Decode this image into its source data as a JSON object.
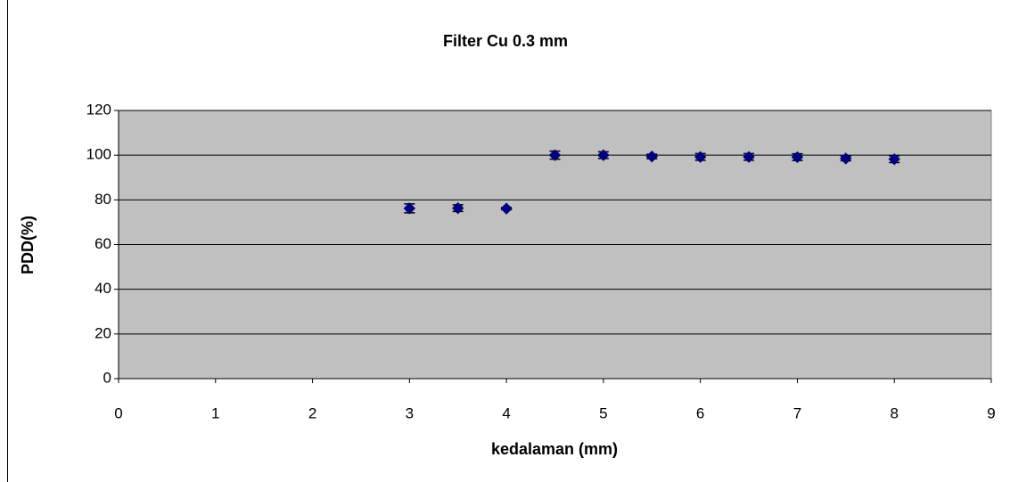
{
  "chart_data": {
    "type": "scatter",
    "title": "Filter Cu 0.3 mm",
    "x_label": "kedalaman (mm)",
    "y_label": "PDD(%)",
    "x": [
      3,
      3.5,
      4,
      4.5,
      5,
      5.5,
      6,
      6.5,
      7,
      7.5,
      8
    ],
    "values": [
      76.2,
      76.3,
      76.1,
      100,
      100,
      99.4,
      99.2,
      99.2,
      99.1,
      98.5,
      98.2
    ],
    "errors": [
      2,
      1.5,
      0.5,
      1.8,
      1.5,
      1,
      1.5,
      1.5,
      1.5,
      1,
      1.5
    ],
    "color": "#000080",
    "plot_background": "#c0c0c0",
    "xlim": [
      0,
      9
    ],
    "xticks": [
      0,
      1,
      2,
      3,
      4,
      5,
      6,
      7,
      8,
      9
    ],
    "ylim": [
      0,
      120
    ],
    "yticks": [
      0,
      20,
      40,
      60,
      80,
      100,
      120
    ],
    "grid": true
  }
}
